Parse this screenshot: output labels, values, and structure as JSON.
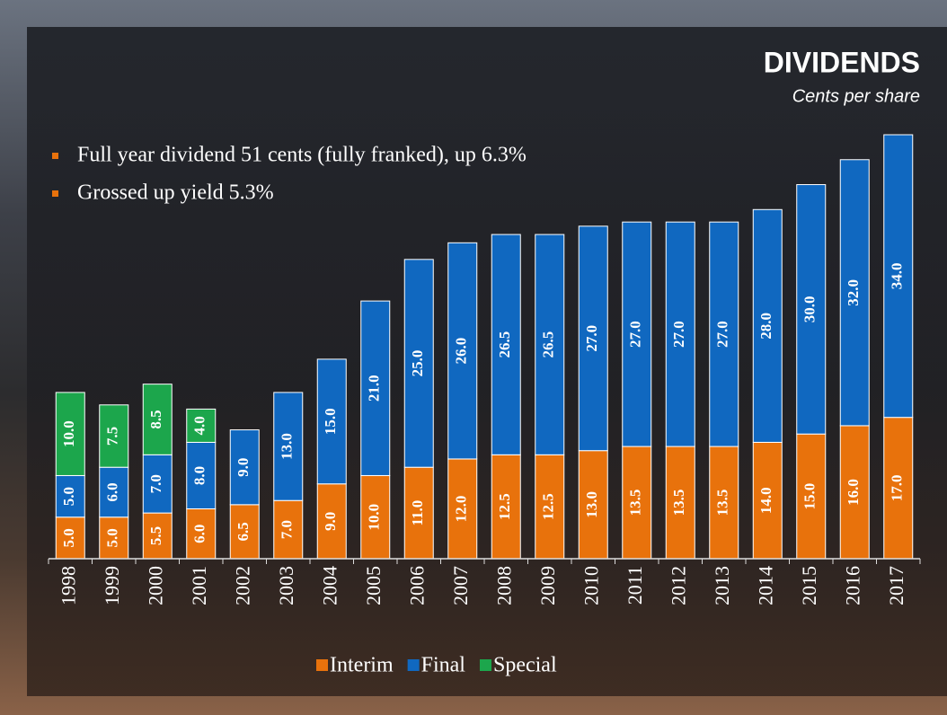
{
  "chart_data": {
    "type": "stacked_bar",
    "title": "DIVIDENDS",
    "subtitle": "Cents per share",
    "annotations": [
      "Full year dividend 51 cents (fully franked), up 6.3%",
      "Grossed up yield 5.3%"
    ],
    "categories": [
      "1998",
      "1999",
      "2000",
      "2001",
      "2002",
      "2003",
      "2004",
      "2005",
      "2006",
      "2007",
      "2008",
      "2009",
      "2010",
      "2011",
      "2012",
      "2013",
      "2014",
      "2015",
      "2016",
      "2017"
    ],
    "series": [
      {
        "name": "Interim",
        "color": "#e8720c",
        "values": [
          5,
          5,
          5.5,
          6,
          6.5,
          7,
          9,
          10,
          11,
          12,
          12.5,
          12.5,
          13,
          13.5,
          13.5,
          13.5,
          14,
          15,
          16,
          17
        ],
        "value_labels": [
          "5.0",
          "5.0",
          "5.5",
          "6.0",
          "6.5",
          "7.0",
          "9.0",
          "10.0",
          "11.0",
          "12.0",
          "12.5",
          "12.5",
          "13.0",
          "13.5",
          "13.5",
          "13.5",
          "14.0",
          "15.0",
          "16.0",
          "17.0"
        ]
      },
      {
        "name": "Final",
        "color": "#1068c0",
        "values": [
          5,
          6,
          7,
          8,
          9,
          13,
          15,
          21,
          25,
          26,
          26.5,
          26.5,
          27,
          27,
          27,
          27,
          28,
          30,
          32,
          34
        ],
        "value_labels": [
          "5.0",
          "6.0",
          "7.0",
          "8.0",
          "9.0",
          "13.0",
          "15.0",
          "21.0",
          "25.0",
          "26.0",
          "26.5",
          "26.5",
          "27.0",
          "27.0",
          "27.0",
          "27.0",
          "28.0",
          "30.0",
          "32.0",
          "34.0"
        ]
      },
      {
        "name": "Special",
        "color": "#1ca64c",
        "values": [
          10,
          7.5,
          8.5,
          4,
          null,
          null,
          null,
          null,
          null,
          null,
          null,
          null,
          null,
          null,
          null,
          null,
          null,
          null,
          null,
          null
        ],
        "value_labels": [
          "10.0",
          "7.5",
          "8.5",
          "4.0",
          null,
          null,
          null,
          null,
          null,
          null,
          null,
          null,
          null,
          null,
          null,
          null,
          null,
          null,
          null,
          null
        ]
      }
    ]
  }
}
